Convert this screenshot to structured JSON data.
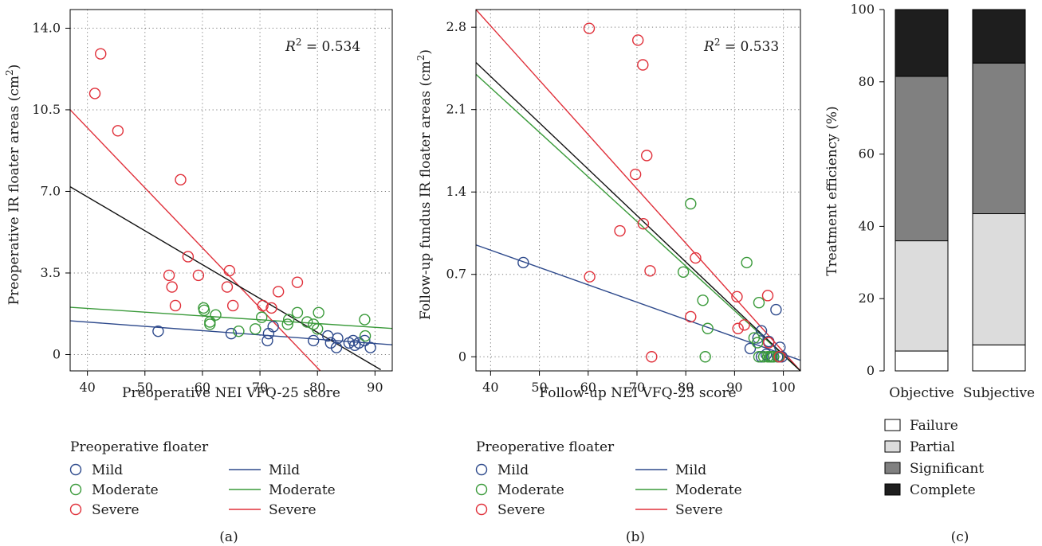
{
  "colors": {
    "mild": "#2e4a8c",
    "moderate": "#3a9a3a",
    "severe": "#e0303a",
    "overall": "#111111",
    "failure": "#ffffff",
    "partial": "#dcdcdc",
    "significant": "#808080",
    "complete": "#1e1e1e"
  },
  "chart_data": [
    {
      "type": "scatter",
      "panel_label": "(a)",
      "xlabel": "Preoperative NEI VFQ-25 score",
      "ylabel": "Preoperative IR floater areas (cm",
      "ylabel_sup": "2",
      "ylabel_close": ")",
      "xlim": [
        37,
        93
      ],
      "ylim": [
        -0.7,
        14.8
      ],
      "xticks": [
        40,
        50,
        60,
        70,
        80,
        90
      ],
      "xtick_labels": [
        "40",
        "50",
        "60",
        "70",
        "80",
        "90"
      ],
      "yticks": [
        0,
        3.5,
        7,
        10.5,
        14
      ],
      "ytick_labels": [
        "0",
        "3.5",
        "7.0",
        "10.5",
        "14.0"
      ],
      "grid": "dotted",
      "annotation": {
        "prefix": "R",
        "sup": "2",
        "suffix": " = 0.534"
      },
      "legend_title": "Preoperative floater",
      "legend_items": [
        "Mild",
        "Moderate",
        "Severe"
      ],
      "series": [
        {
          "name": "Mild",
          "group": "mild",
          "points": [
            [
              52.3,
              1.0
            ],
            [
              65,
              0.9
            ],
            [
              71.3,
              0.6
            ],
            [
              71.5,
              0.9
            ],
            [
              72.3,
              1.2
            ],
            [
              79.3,
              0.6
            ],
            [
              81.8,
              0.8
            ],
            [
              82.3,
              0.5
            ],
            [
              83.3,
              0.3
            ],
            [
              83.5,
              0.7
            ],
            [
              85.5,
              0.5
            ],
            [
              86.2,
              0.6
            ],
            [
              86.5,
              0.4
            ],
            [
              87.2,
              0.5
            ],
            [
              88.2,
              0.6
            ],
            [
              89.2,
              0.3
            ]
          ]
        },
        {
          "name": "Moderate",
          "group": "moderate",
          "points": [
            [
              60.2,
              2.0
            ],
            [
              60.3,
              1.9
            ],
            [
              61.3,
              1.3
            ],
            [
              61.3,
              1.4
            ],
            [
              62.3,
              1.7
            ],
            [
              66.3,
              1.0
            ],
            [
              69.2,
              1.1
            ],
            [
              70.3,
              1.6
            ],
            [
              74.8,
              1.3
            ],
            [
              75,
              1.5
            ],
            [
              76.5,
              1.8
            ],
            [
              78.2,
              1.4
            ],
            [
              79.3,
              1.3
            ],
            [
              80,
              1.1
            ],
            [
              80.2,
              1.8
            ],
            [
              88.2,
              1.5
            ],
            [
              88.3,
              0.8
            ]
          ]
        },
        {
          "name": "Severe",
          "group": "severe",
          "points": [
            [
              41.3,
              11.2
            ],
            [
              42.3,
              12.9
            ],
            [
              45.3,
              9.6
            ],
            [
              54.2,
              3.4
            ],
            [
              54.7,
              2.9
            ],
            [
              55.3,
              2.1
            ],
            [
              56.2,
              7.5
            ],
            [
              57.5,
              4.2
            ],
            [
              59.3,
              3.4
            ],
            [
              64.3,
              2.9
            ],
            [
              64.7,
              3.6
            ],
            [
              65.3,
              2.1
            ],
            [
              70.5,
              2.1
            ],
            [
              72,
              2.0
            ],
            [
              73.2,
              2.7
            ],
            [
              76.5,
              3.1
            ]
          ]
        }
      ],
      "fits": [
        {
          "name": "Mild",
          "group": "mild",
          "x": [
            37,
            93
          ],
          "y": [
            1.45,
            0.42
          ]
        },
        {
          "name": "Moderate",
          "group": "moderate",
          "x": [
            37,
            93
          ],
          "y": [
            2.03,
            1.12
          ]
        },
        {
          "name": "Severe",
          "group": "severe",
          "x": [
            37,
            80.5
          ],
          "y": [
            10.5,
            -0.7
          ]
        },
        {
          "name": "",
          "group": "overall",
          "x": [
            37,
            91
          ],
          "y": [
            7.2,
            -0.65
          ]
        }
      ]
    },
    {
      "type": "scatter",
      "panel_label": "(b)",
      "xlabel": "Follow-up NEI VFQ-25 score",
      "ylabel": "Follow-up fundus IR floater areas (cm",
      "ylabel_sup": "2",
      "ylabel_close": ")",
      "xlim": [
        37,
        103.5
      ],
      "ylim": [
        -0.12,
        2.95
      ],
      "xticks": [
        40,
        50,
        60,
        70,
        80,
        90,
        100
      ],
      "xtick_labels": [
        "40",
        "50",
        "60",
        "70",
        "80",
        "90",
        "100"
      ],
      "yticks": [
        0,
        0.7,
        1.4,
        2.1,
        2.8
      ],
      "ytick_labels": [
        "0",
        "0.7",
        "1.4",
        "2.1",
        "2.8"
      ],
      "grid": "dotted",
      "annotation": {
        "prefix": "R",
        "sup": "2",
        "suffix": " = 0.533"
      },
      "legend_title": "Preoperative floater",
      "legend_items": [
        "Mild",
        "Moderate",
        "Severe"
      ],
      "series": [
        {
          "name": "Mild",
          "group": "mild",
          "points": [
            [
              46.7,
              0.8
            ],
            [
              93.2,
              0.07
            ],
            [
              94.8,
              0.16
            ],
            [
              95.5,
              0.22
            ],
            [
              95.5,
              0.0
            ],
            [
              96.5,
              0.02
            ],
            [
              97,
              0.13
            ],
            [
              97.7,
              0.0
            ],
            [
              98.5,
              0.4
            ],
            [
              98.8,
              0.0
            ],
            [
              99.3,
              0.08
            ],
            [
              99.7,
              0.0
            ]
          ]
        },
        {
          "name": "Moderate",
          "group": "moderate",
          "points": [
            [
              79.5,
              0.72
            ],
            [
              81,
              1.3
            ],
            [
              83.5,
              0.48
            ],
            [
              84.5,
              0.24
            ],
            [
              84,
              0.0
            ],
            [
              92.5,
              0.8
            ],
            [
              94,
              0.16
            ],
            [
              94.7,
              0.12
            ],
            [
              95,
              0.46
            ],
            [
              95,
              0.0
            ],
            [
              96,
              0.0
            ],
            [
              96.8,
              0.0
            ],
            [
              97.3,
              0.0
            ],
            [
              97.5,
              0.0
            ],
            [
              98,
              0.0
            ],
            [
              99,
              0.0
            ]
          ]
        },
        {
          "name": "Severe",
          "group": "severe",
          "points": [
            [
              60.2,
              2.79
            ],
            [
              60.3,
              0.68
            ],
            [
              66.5,
              1.07
            ],
            [
              69.7,
              1.55
            ],
            [
              70.2,
              2.69
            ],
            [
              71.2,
              2.48
            ],
            [
              71.3,
              1.13
            ],
            [
              72,
              1.71
            ],
            [
              72.7,
              0.73
            ],
            [
              73,
              0.0
            ],
            [
              81,
              0.34
            ],
            [
              82,
              0.84
            ],
            [
              90.5,
              0.51
            ],
            [
              90.7,
              0.24
            ],
            [
              92,
              0.27
            ],
            [
              96.8,
              0.52
            ],
            [
              97,
              0.12
            ],
            [
              99.2,
              0.0
            ]
          ]
        }
      ],
      "fits": [
        {
          "name": "Mild",
          "group": "mild",
          "x": [
            37,
            103.5
          ],
          "y": [
            0.95,
            -0.03
          ]
        },
        {
          "name": "Moderate",
          "group": "moderate",
          "x": [
            37,
            103.5
          ],
          "y": [
            2.4,
            -0.12
          ]
        },
        {
          "name": "Severe",
          "group": "severe",
          "x": [
            37,
            103.5
          ],
          "y": [
            2.95,
            -0.12
          ]
        },
        {
          "name": "",
          "group": "overall",
          "x": [
            37,
            103.5
          ],
          "y": [
            2.5,
            -0.12
          ]
        }
      ]
    },
    {
      "type": "bar",
      "stacked": true,
      "panel_label": "(c)",
      "ylabel": "Treatment efficiency (%)",
      "ylim": [
        0,
        100
      ],
      "yticks": [
        0,
        20,
        40,
        60,
        80,
        100
      ],
      "ytick_labels": [
        "0",
        "20",
        "40",
        "60",
        "80",
        "100"
      ],
      "categories": [
        "Objective",
        "Subjective"
      ],
      "series": [
        {
          "name": "Failure",
          "group": "failure",
          "values": [
            5.5,
            7.2
          ]
        },
        {
          "name": "Partial",
          "group": "partial",
          "values": [
            30.5,
            36.3
          ]
        },
        {
          "name": "Significant",
          "group": "significant",
          "values": [
            45.5,
            41.7
          ]
        },
        {
          "name": "Complete",
          "group": "complete",
          "values": [
            18.5,
            14.8
          ]
        }
      ],
      "legend_items": [
        "Failure",
        "Partial",
        "Significant",
        "Complete"
      ]
    }
  ]
}
